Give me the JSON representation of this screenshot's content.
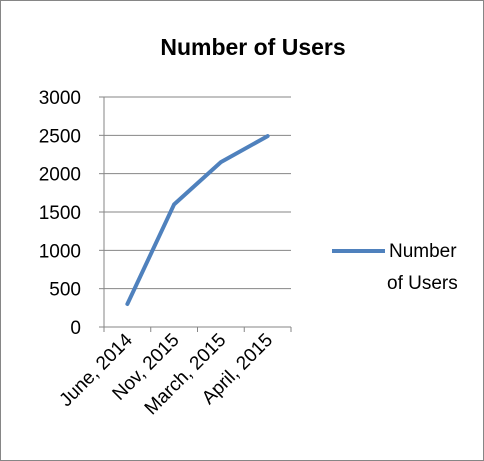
{
  "chart_data": {
    "type": "line",
    "title": "Number of Users",
    "xlabel": "",
    "ylabel": "",
    "categories": [
      "June, 2014",
      "Nov, 2015",
      "March, 2015",
      "April, 2015"
    ],
    "series": [
      {
        "name": "Number of Users",
        "values": [
          300,
          1600,
          2150,
          2490
        ],
        "color": "#4F81BD"
      }
    ],
    "ylim": [
      0,
      3000
    ],
    "yticks": [
      0,
      500,
      1000,
      1500,
      2000,
      2500,
      3000
    ],
    "grid": "horizontal",
    "legend": "right"
  }
}
